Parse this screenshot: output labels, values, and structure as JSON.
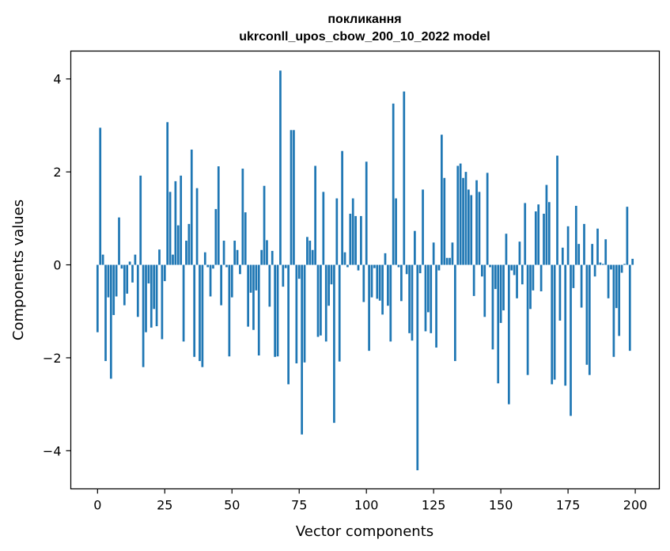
{
  "chart_data": {
    "type": "bar",
    "title_lines": [
      "покликання",
      "ukrconll_upos_cbow_200_10_2022 model"
    ],
    "xlabel": "Vector components",
    "ylabel": "Components values",
    "xlim": [
      -9.95,
      208.95
    ],
    "ylim": [
      -4.82,
      4.6
    ],
    "xticks": [
      0,
      25,
      50,
      75,
      100,
      125,
      150,
      175,
      200
    ],
    "yticks": [
      -4,
      -2,
      0,
      2,
      4
    ],
    "ytick_labels": [
      "−4",
      "−2",
      "0",
      "2",
      "4"
    ],
    "bar_color": "#1f77b4",
    "grid": false,
    "x": [
      0,
      1,
      2,
      3,
      4,
      5,
      6,
      7,
      8,
      9,
      10,
      11,
      12,
      13,
      14,
      15,
      16,
      17,
      18,
      19,
      20,
      21,
      22,
      23,
      24,
      25,
      26,
      27,
      28,
      29,
      30,
      31,
      32,
      33,
      34,
      35,
      36,
      37,
      38,
      39,
      40,
      41,
      42,
      43,
      44,
      45,
      46,
      47,
      48,
      49,
      50,
      51,
      52,
      53,
      54,
      55,
      56,
      57,
      58,
      59,
      60,
      61,
      62,
      63,
      64,
      65,
      66,
      67,
      68,
      69,
      70,
      71,
      72,
      73,
      74,
      75,
      76,
      77,
      78,
      79,
      80,
      81,
      82,
      83,
      84,
      85,
      86,
      87,
      88,
      89,
      90,
      91,
      92,
      93,
      94,
      95,
      96,
      97,
      98,
      99,
      100,
      101,
      102,
      103,
      104,
      105,
      106,
      107,
      108,
      109,
      110,
      111,
      112,
      113,
      114,
      115,
      116,
      117,
      118,
      119,
      120,
      121,
      122,
      123,
      124,
      125,
      126,
      127,
      128,
      129,
      130,
      131,
      132,
      133,
      134,
      135,
      136,
      137,
      138,
      139,
      140,
      141,
      142,
      143,
      144,
      145,
      146,
      147,
      148,
      149,
      150,
      151,
      152,
      153,
      154,
      155,
      156,
      157,
      158,
      159,
      160,
      161,
      162,
      163,
      164,
      165,
      166,
      167,
      168,
      169,
      170,
      171,
      172,
      173,
      174,
      175,
      176,
      177,
      178,
      179,
      180,
      181,
      182,
      183,
      184,
      185,
      186,
      187,
      188,
      189,
      190,
      191,
      192,
      193,
      194,
      195,
      196,
      197,
      198,
      199
    ],
    "values": [
      -1.45,
      2.95,
      0.22,
      -2.07,
      -0.7,
      -2.45,
      -1.08,
      -0.68,
      1.02,
      -0.08,
      -0.87,
      -0.62,
      0.07,
      -0.38,
      0.22,
      -1.12,
      1.92,
      -2.2,
      -1.45,
      -0.4,
      -1.35,
      -0.95,
      -1.32,
      0.33,
      -1.6,
      -0.35,
      3.07,
      1.57,
      0.22,
      1.8,
      0.85,
      1.92,
      -1.65,
      0.52,
      0.88,
      2.48,
      -1.98,
      1.65,
      -2.07,
      -2.2,
      0.27,
      -0.05,
      -0.68,
      -0.08,
      1.2,
      2.12,
      -0.87,
      0.52,
      -0.05,
      -1.97,
      -0.7,
      0.52,
      0.32,
      -0.2,
      2.07,
      1.13,
      -1.33,
      -0.6,
      -1.4,
      -0.55,
      -1.95,
      0.32,
      1.7,
      0.53,
      -0.9,
      0.3,
      -1.98,
      -1.97,
      4.18,
      -0.47,
      -0.07,
      -2.57,
      2.9,
      2.9,
      -2.12,
      -0.3,
      -3.65,
      -2.1,
      0.6,
      0.52,
      0.32,
      2.13,
      -1.55,
      -1.52,
      1.57,
      -1.65,
      -0.88,
      -0.42,
      -3.4,
      1.43,
      -2.08,
      2.45,
      0.27,
      -0.05,
      1.1,
      1.43,
      1.05,
      -0.12,
      1.05,
      -0.8,
      2.22,
      -1.85,
      -0.7,
      -0.07,
      -0.73,
      -0.77,
      -1.07,
      0.25,
      -0.88,
      -1.65,
      3.47,
      1.43,
      -0.05,
      -0.78,
      3.73,
      -0.2,
      -1.47,
      -1.63,
      0.73,
      -4.42,
      -0.18,
      1.62,
      -1.43,
      -1.02,
      -1.47,
      0.48,
      -1.78,
      -0.12,
      2.8,
      1.87,
      0.15,
      0.15,
      0.48,
      -2.07,
      2.13,
      2.18,
      1.87,
      2.0,
      1.62,
      1.5,
      -0.67,
      1.82,
      1.57,
      -0.25,
      -1.12,
      1.98,
      -0.05,
      -1.82,
      -0.52,
      -2.55,
      -1.25,
      -0.98,
      0.67,
      -3.0,
      -0.12,
      -0.22,
      -0.72,
      0.5,
      -0.42,
      1.33,
      -2.37,
      -0.95,
      -0.55,
      1.15,
      1.3,
      -0.57,
      1.1,
      1.72,
      1.35,
      -2.57,
      -2.47,
      2.35,
      -1.2,
      0.37,
      -2.6,
      0.83,
      -3.25,
      -0.5,
      1.27,
      0.45,
      -0.92,
      0.88,
      -2.15,
      -2.37,
      0.45,
      -0.25,
      0.78,
      0.05,
      0.02,
      0.55,
      -0.72,
      -0.1,
      -1.98,
      -0.93,
      -1.53,
      -0.17,
      0.02,
      1.25,
      -1.85,
      0.13
    ]
  }
}
